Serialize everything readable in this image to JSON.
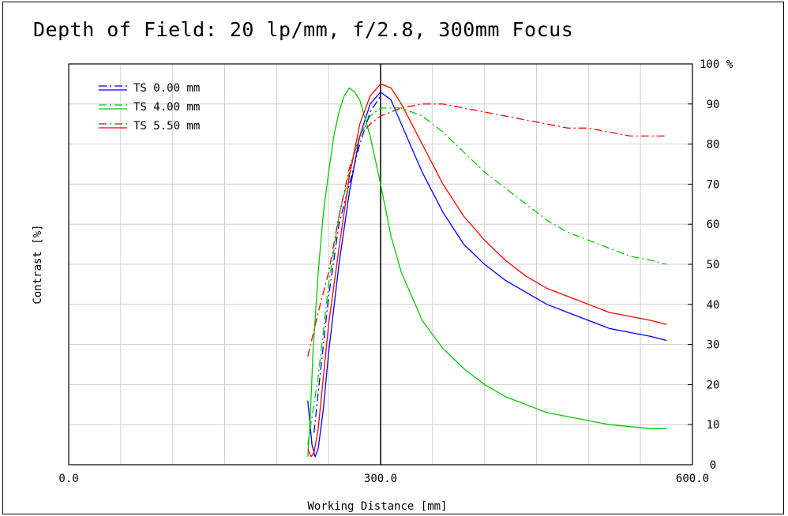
{
  "chart_data": {
    "type": "line",
    "title": "Depth of Field: 20 lp/mm, f/2.8, 300mm Focus",
    "xlabel": "Working Distance [mm]",
    "ylabel": "Contrast [%]",
    "xlim": [
      0,
      600
    ],
    "ylim": [
      0,
      100
    ],
    "y_unit_label": "100 %",
    "x_ticks": [
      0,
      300,
      600
    ],
    "x_tick_labels": [
      "0.0",
      "300.0",
      "600.0"
    ],
    "y_ticks": [
      0,
      10,
      20,
      30,
      40,
      50,
      60,
      70,
      80,
      90
    ],
    "y_tick_labels": [
      "0",
      "10",
      "20",
      "30",
      "40",
      "50",
      "60",
      "70",
      "80",
      "90"
    ],
    "grid": true,
    "vertical_marker_x": 300,
    "legend_position": "top-left",
    "legend": [
      "TS 0.00 mm",
      "TS 4.00 mm",
      "TS 5.50 mm"
    ],
    "series": [
      {
        "name": "TS 0.00 mm",
        "style": "solid",
        "color": "#0000ff",
        "x": [
          230,
          234,
          237,
          240,
          245,
          250,
          260,
          270,
          280,
          290,
          300,
          310,
          320,
          340,
          360,
          380,
          400,
          420,
          440,
          460,
          480,
          500,
          520,
          540,
          560,
          575
        ],
        "y": [
          16,
          5,
          2,
          4,
          14,
          28,
          50,
          68,
          82,
          90,
          93,
          91,
          85,
          73,
          63,
          55,
          50,
          46,
          43,
          40,
          38,
          36,
          34,
          33,
          32,
          31
        ]
      },
      {
        "name": "TS 0.00 mm",
        "style": "dashdot",
        "color": "#0000ff",
        "x": [
          236,
          240,
          245,
          250,
          260,
          270,
          280,
          290,
          300
        ],
        "y": [
          8,
          18,
          30,
          42,
          60,
          70,
          80,
          88,
          92
        ]
      },
      {
        "name": "TS 4.00 mm",
        "style": "solid",
        "color": "#00cc00",
        "x": [
          230,
          232,
          235,
          240,
          245,
          250,
          255,
          260,
          265,
          270,
          275,
          280,
          290,
          300,
          310,
          320,
          340,
          360,
          380,
          400,
          420,
          440,
          460,
          480,
          500,
          520,
          540,
          560,
          575
        ],
        "y": [
          2,
          10,
          28,
          48,
          63,
          73,
          82,
          88,
          92,
          94,
          93,
          91,
          82,
          70,
          57,
          48,
          36,
          29,
          24,
          20,
          17,
          15,
          13,
          12,
          11,
          10,
          9.5,
          9,
          9
        ]
      },
      {
        "name": "TS 4.00 mm",
        "style": "dashdot",
        "color": "#00cc00",
        "x": [
          230,
          240,
          250,
          260,
          270,
          280,
          290,
          300,
          320,
          340,
          360,
          380,
          400,
          420,
          440,
          460,
          480,
          500,
          520,
          540,
          560,
          575
        ],
        "y": [
          5,
          22,
          45,
          62,
          73,
          82,
          87,
          89,
          89,
          87,
          83,
          78,
          73,
          69,
          65,
          61,
          58,
          56,
          54,
          52,
          51,
          50
        ]
      },
      {
        "name": "TS 5.50 mm",
        "style": "solid",
        "color": "#ff0000",
        "x": [
          230,
          233,
          236,
          240,
          245,
          250,
          260,
          270,
          280,
          290,
          300,
          310,
          320,
          340,
          360,
          380,
          400,
          420,
          440,
          460,
          480,
          500,
          520,
          540,
          560,
          575
        ],
        "y": [
          4,
          2,
          3,
          9,
          22,
          35,
          54,
          72,
          85,
          92,
          95,
          94,
          90,
          80,
          70,
          62,
          56,
          51,
          47,
          44,
          42,
          40,
          38,
          37,
          36,
          35
        ]
      },
      {
        "name": "TS 5.50 mm",
        "style": "dashdot",
        "color": "#ff0000",
        "x": [
          230,
          240,
          250,
          260,
          270,
          280,
          290,
          300,
          320,
          340,
          360,
          380,
          400,
          420,
          440,
          460,
          480,
          500,
          520,
          540,
          560,
          575
        ],
        "y": [
          27,
          38,
          48,
          62,
          74,
          82,
          85,
          87,
          89,
          90,
          90,
          89,
          88,
          87,
          86,
          85,
          84,
          84,
          83,
          82,
          82,
          82
        ]
      }
    ]
  }
}
